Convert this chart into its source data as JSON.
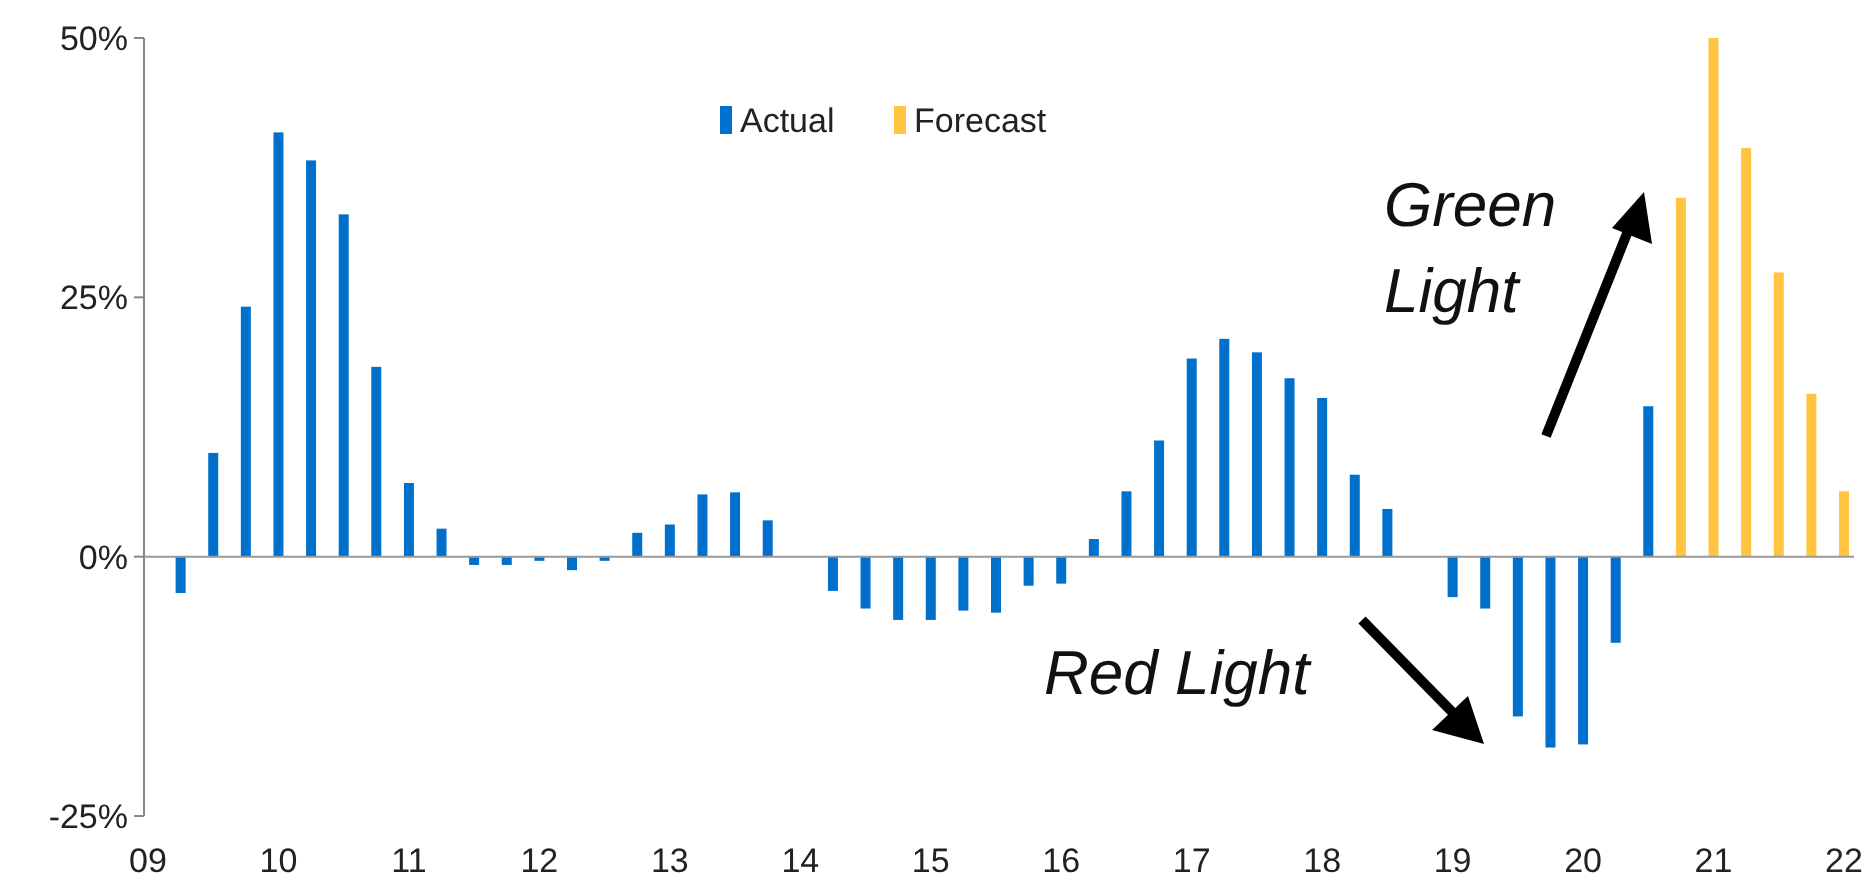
{
  "chart_data": {
    "type": "bar",
    "ylim": [
      -25,
      50
    ],
    "yticks": [
      {
        "value": -25,
        "label": "-25%"
      },
      {
        "value": 0,
        "label": "0%"
      },
      {
        "value": 25,
        "label": "25%"
      },
      {
        "value": 50,
        "label": "50%"
      }
    ],
    "xlim": [
      2009,
      2022
    ],
    "xticks": [
      {
        "value": 2009,
        "label": "09"
      },
      {
        "value": 2010,
        "label": "10"
      },
      {
        "value": 2011,
        "label": "11"
      },
      {
        "value": 2012,
        "label": "12"
      },
      {
        "value": 2013,
        "label": "13"
      },
      {
        "value": 2014,
        "label": "14"
      },
      {
        "value": 2015,
        "label": "15"
      },
      {
        "value": 2016,
        "label": "16"
      },
      {
        "value": 2017,
        "label": "17"
      },
      {
        "value": 2018,
        "label": "18"
      },
      {
        "value": 2019,
        "label": "19"
      },
      {
        "value": 2020,
        "label": "20"
      },
      {
        "value": 2021,
        "label": "21"
      },
      {
        "value": 2022,
        "label": "22"
      }
    ],
    "series": [
      {
        "name": "Actual",
        "color": "#0070cc",
        "x": [
          2009.25,
          2009.5,
          2009.75,
          2010,
          2010.25,
          2010.5,
          2010.75,
          2011,
          2011.25,
          2011.5,
          2011.75,
          2012,
          2012.25,
          2012.5,
          2012.75,
          2013,
          2013.25,
          2013.5,
          2013.75,
          2014,
          2014.25,
          2014.5,
          2014.75,
          2015,
          2015.25,
          2015.5,
          2015.75,
          2016,
          2016.25,
          2016.5,
          2016.75,
          2017,
          2017.25,
          2017.5,
          2017.75,
          2018,
          2018.25,
          2018.5,
          2018.75,
          2019,
          2019.25,
          2019.5,
          2019.75,
          2020,
          2020.25,
          2020.5
        ],
        "values": [
          -3.5,
          10,
          24.1,
          40.9,
          38.2,
          33,
          18.3,
          7.1,
          2.7,
          -0.8,
          -0.8,
          -0.4,
          -1.3,
          -0.4,
          2.3,
          3.1,
          6,
          6.2,
          3.5,
          0,
          -3.3,
          -5,
          -6.1,
          -6.1,
          -5.2,
          -5.4,
          -2.8,
          -2.6,
          1.7,
          6.3,
          11.2,
          19.1,
          21,
          19.7,
          17.2,
          15.3,
          7.9,
          4.6,
          0,
          -3.9,
          -5,
          -15.4,
          -18.4,
          -18.1,
          -8.3,
          14.5
        ]
      },
      {
        "name": "Forecast",
        "color": "#ffc440",
        "x": [
          2020.75,
          2021,
          2021.25,
          2021.5,
          2021.75,
          2022
        ],
        "values": [
          34.6,
          50,
          39.4,
          27.4,
          15.7,
          6.3
        ]
      }
    ],
    "legend": "top",
    "annotations": [
      "Green Light",
      "Red Light"
    ]
  }
}
